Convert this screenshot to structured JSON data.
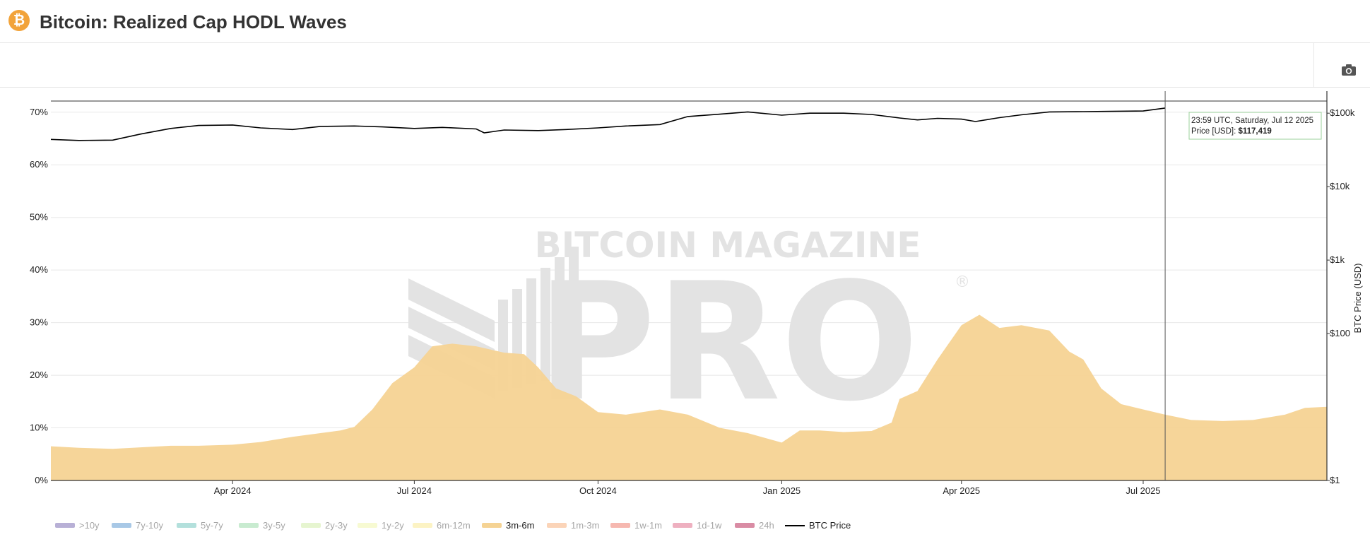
{
  "header": {
    "logo_glyph": "₿",
    "title": "Bitcoin: Realized Cap HODL Waves"
  },
  "toolbar": {
    "camera_icon": "camera-icon"
  },
  "watermark": {
    "line1": "BITCOIN MAGAZINE",
    "line2": "PRO",
    "mark": "®"
  },
  "tooltip": {
    "time": "23:59 UTC, Saturday, Jul 12 2025",
    "price_label": "Price [USD]: ",
    "price_value": "$117,419",
    "date": "2025-07-12"
  },
  "colors": {
    "band_3m_6m": "#f5d394",
    "btc_price": "#000000",
    "grid": "#e8e8e8"
  },
  "chart_data": {
    "type": "area",
    "title": "Bitcoin: Realized Cap HODL Waves",
    "x_range": [
      "2024-01-01",
      "2025-10-01"
    ],
    "x_ticks": [
      {
        "date": "2024-04-01",
        "label": "Apr 2024"
      },
      {
        "date": "2024-07-01",
        "label": "Jul 2024"
      },
      {
        "date": "2024-10-01",
        "label": "Oct 2024"
      },
      {
        "date": "2025-01-01",
        "label": "Jan 2025"
      },
      {
        "date": "2025-04-01",
        "label": "Apr 2025"
      },
      {
        "date": "2025-07-01",
        "label": "Jul 2025"
      }
    ],
    "y_left": {
      "range": [
        0,
        74
      ],
      "ticks": [
        0,
        10,
        20,
        30,
        40,
        50,
        60,
        70
      ],
      "tick_labels": [
        "0%",
        "10%",
        "20%",
        "30%",
        "40%",
        "50%",
        "60%",
        "70%"
      ]
    },
    "y_right": {
      "label": "BTC Price (USD)",
      "scale": "log",
      "ticks": [
        1,
        100,
        1000,
        10000,
        100000
      ],
      "tick_labels": [
        "$1",
        "$100",
        "$1k",
        "$10k",
        "$100k"
      ]
    },
    "legend": {
      "placement": "bottom-left",
      "items": [
        {
          "name": ">10y",
          "color": "#b8b0d6",
          "active": false
        },
        {
          "name": "7y-10y",
          "color": "#a8c8e6",
          "active": false
        },
        {
          "name": "5y-7y",
          "color": "#b3e0dc",
          "active": false
        },
        {
          "name": "3y-5y",
          "color": "#c8ebd0",
          "active": false
        },
        {
          "name": "2y-3y",
          "color": "#e6f5d0",
          "active": false
        },
        {
          "name": "1y-2y",
          "color": "#f7fad2",
          "active": false
        },
        {
          "name": "6m-12m",
          "color": "#fcf3c4",
          "active": false
        },
        {
          "name": "3m-6m",
          "color": "#f5d394",
          "active": true
        },
        {
          "name": "1m-3m",
          "color": "#fbd4b8",
          "active": false
        },
        {
          "name": "1w-1m",
          "color": "#f6b8b0",
          "active": false
        },
        {
          "name": "1d-1w",
          "color": "#eeb0c0",
          "active": false
        },
        {
          "name": "24h",
          "color": "#d98ca4",
          "active": false
        },
        {
          "name": "BTC Price",
          "color": "#000000",
          "active": true,
          "line": true
        }
      ]
    },
    "series": [
      {
        "name": "3m-6m",
        "axis": "left",
        "dates": [
          "2024-01-01",
          "2024-01-15",
          "2024-02-01",
          "2024-02-15",
          "2024-03-01",
          "2024-03-15",
          "2024-04-01",
          "2024-04-15",
          "2024-05-01",
          "2024-05-15",
          "2024-05-25",
          "2024-06-01",
          "2024-06-10",
          "2024-06-20",
          "2024-07-01",
          "2024-07-10",
          "2024-07-20",
          "2024-08-01",
          "2024-08-15",
          "2024-08-25",
          "2024-09-01",
          "2024-09-10",
          "2024-09-20",
          "2024-10-01",
          "2024-10-15",
          "2024-11-01",
          "2024-11-15",
          "2024-12-01",
          "2024-12-15",
          "2025-01-01",
          "2025-01-10",
          "2025-01-20",
          "2025-02-01",
          "2025-02-15",
          "2025-02-25",
          "2025-03-01",
          "2025-03-10",
          "2025-03-20",
          "2025-04-01",
          "2025-04-10",
          "2025-04-20",
          "2025-05-01",
          "2025-05-15",
          "2025-05-25",
          "2025-06-01",
          "2025-06-10",
          "2025-06-20",
          "2025-07-01",
          "2025-07-12",
          "2025-07-25",
          "2025-08-10",
          "2025-08-25",
          "2025-09-10",
          "2025-09-20",
          "2025-10-01"
        ],
        "values": [
          6.5,
          6.2,
          6.0,
          6.3,
          6.6,
          6.6,
          6.8,
          7.3,
          8.3,
          9.0,
          9.5,
          10.2,
          13.5,
          18.5,
          21.5,
          25.5,
          26.0,
          25.5,
          24.3,
          24.0,
          21.5,
          17.5,
          16.0,
          13.0,
          12.5,
          13.5,
          12.5,
          10.0,
          9.0,
          7.2,
          9.5,
          9.5,
          9.2,
          9.4,
          11.0,
          15.5,
          17.0,
          23.0,
          29.5,
          31.5,
          29.0,
          29.5,
          28.5,
          24.5,
          23.0,
          17.5,
          14.5,
          13.5,
          12.5,
          11.5,
          11.3,
          11.5,
          12.5,
          13.8,
          14.0
        ]
      },
      {
        "name": "BTC Price",
        "axis": "right",
        "dates": [
          "2024-01-01",
          "2024-01-15",
          "2024-02-01",
          "2024-02-15",
          "2024-03-01",
          "2024-03-15",
          "2024-04-01",
          "2024-04-15",
          "2024-05-01",
          "2024-05-15",
          "2024-06-01",
          "2024-06-15",
          "2024-07-01",
          "2024-07-15",
          "2024-08-01",
          "2024-08-05",
          "2024-08-15",
          "2024-09-01",
          "2024-09-15",
          "2024-10-01",
          "2024-10-15",
          "2024-11-01",
          "2024-11-15",
          "2024-12-01",
          "2024-12-15",
          "2025-01-01",
          "2025-01-15",
          "2025-02-01",
          "2025-02-15",
          "2025-03-01",
          "2025-03-10",
          "2025-03-20",
          "2025-04-01",
          "2025-04-08",
          "2025-04-20",
          "2025-05-01",
          "2025-05-15",
          "2025-06-01",
          "2025-06-15",
          "2025-07-01",
          "2025-07-12"
        ],
        "values": [
          44000,
          42500,
          43000,
          52000,
          62000,
          68000,
          69000,
          63000,
          60000,
          66000,
          67000,
          65000,
          62000,
          64000,
          61000,
          54000,
          59000,
          58000,
          60000,
          63000,
          67000,
          70000,
          90000,
          97000,
          104000,
          94000,
          100000,
          100000,
          96000,
          86000,
          81000,
          85000,
          83000,
          77000,
          87000,
          95000,
          104000,
          105000,
          106000,
          107000,
          117419
        ]
      }
    ]
  }
}
